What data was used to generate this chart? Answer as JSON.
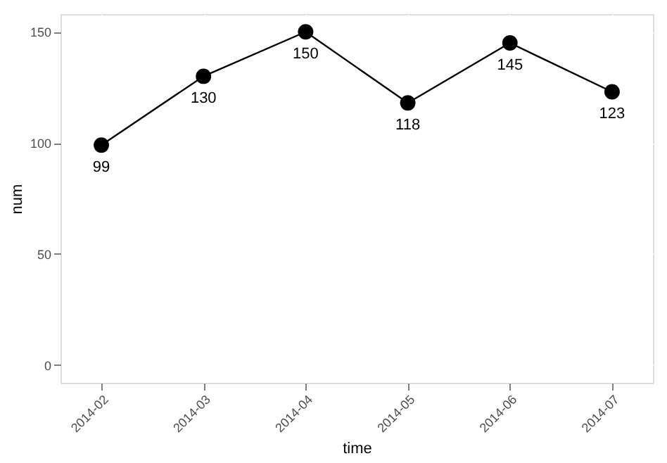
{
  "chart_data": {
    "type": "line",
    "xlabel": "time",
    "ylabel": "num",
    "categories": [
      "2014-02",
      "2014-03",
      "2014-04",
      "2014-05",
      "2014-06",
      "2014-07"
    ],
    "series": [
      {
        "color": "#000000",
        "values": [
          99,
          130,
          150,
          118,
          145,
          123
        ]
      }
    ],
    "ylim": [
      -8,
      158
    ],
    "yticks": [
      0,
      50,
      100,
      150
    ],
    "grid": true,
    "marker": "circle",
    "line_style": "solid",
    "data_labels": true,
    "legend": false
  }
}
